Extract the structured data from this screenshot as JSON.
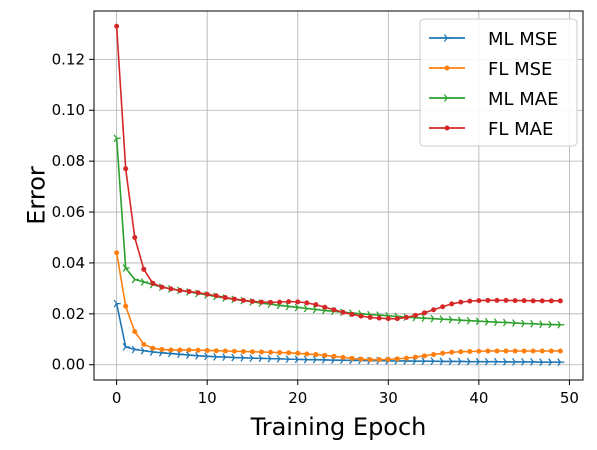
{
  "chart_data": {
    "type": "line",
    "xlabel": "Training Epoch",
    "ylabel": "Error",
    "xlim": [
      -2.5,
      51.5
    ],
    "ylim": [
      -0.006,
      0.139
    ],
    "xticks": [
      0,
      10,
      20,
      30,
      40,
      50
    ],
    "yticks": [
      0.0,
      0.02,
      0.04,
      0.06,
      0.08,
      0.1,
      0.12
    ],
    "xtick_labels": [
      "0",
      "10",
      "20",
      "30",
      "40",
      "50"
    ],
    "ytick_labels": [
      "0.00",
      "0.02",
      "0.04",
      "0.06",
      "0.08",
      "0.10",
      "0.12"
    ],
    "grid": true,
    "legend_position": "top-right",
    "x": [
      0,
      1,
      2,
      3,
      4,
      5,
      6,
      7,
      8,
      9,
      10,
      11,
      12,
      13,
      14,
      15,
      16,
      17,
      18,
      19,
      20,
      21,
      22,
      23,
      24,
      25,
      26,
      27,
      28,
      29,
      30,
      31,
      32,
      33,
      34,
      35,
      36,
      37,
      38,
      39,
      40,
      41,
      42,
      43,
      44,
      45,
      46,
      47,
      48,
      49
    ],
    "series": [
      {
        "name": "ML MSE",
        "color": "#1f77b4",
        "marker": "tri_right",
        "values": [
          0.024,
          0.007,
          0.006,
          0.0055,
          0.005,
          0.0047,
          0.0044,
          0.0041,
          0.0038,
          0.0035,
          0.0033,
          0.0031,
          0.003,
          0.0028,
          0.0027,
          0.0026,
          0.0025,
          0.0024,
          0.0023,
          0.0022,
          0.0021,
          0.002,
          0.002,
          0.0019,
          0.0018,
          0.0018,
          0.0017,
          0.0017,
          0.0016,
          0.0016,
          0.0015,
          0.0015,
          0.0015,
          0.0014,
          0.0014,
          0.0014,
          0.0013,
          0.0013,
          0.0013,
          0.0012,
          0.0012,
          0.0012,
          0.0012,
          0.0011,
          0.0011,
          0.0011,
          0.0011,
          0.001,
          0.001,
          0.001
        ]
      },
      {
        "name": "FL MSE",
        "color": "#ff7f0e",
        "marker": "dot",
        "values": [
          0.044,
          0.023,
          0.013,
          0.008,
          0.0065,
          0.006,
          0.0058,
          0.0058,
          0.0058,
          0.0057,
          0.0056,
          0.0055,
          0.0054,
          0.0053,
          0.0052,
          0.0051,
          0.005,
          0.0049,
          0.0048,
          0.0047,
          0.0045,
          0.0042,
          0.004,
          0.0037,
          0.0033,
          0.0029,
          0.0025,
          0.0022,
          0.002,
          0.002,
          0.0021,
          0.0023,
          0.0026,
          0.003,
          0.0035,
          0.004,
          0.0045,
          0.0049,
          0.0051,
          0.0052,
          0.0053,
          0.0054,
          0.0054,
          0.0054,
          0.0054,
          0.0054,
          0.0054,
          0.0054,
          0.0054,
          0.0054
        ]
      },
      {
        "name": "ML MAE",
        "color": "#2ca02c",
        "marker": "tri_right",
        "values": [
          0.089,
          0.038,
          0.0335,
          0.0325,
          0.0315,
          0.0305,
          0.0298,
          0.0292,
          0.0286,
          0.028,
          0.0274,
          0.0268,
          0.0262,
          0.0257,
          0.0252,
          0.0247,
          0.0242,
          0.0238,
          0.0233,
          0.0229,
          0.0225,
          0.0221,
          0.0217,
          0.0213,
          0.021,
          0.0206,
          0.0203,
          0.02,
          0.0197,
          0.0195,
          0.0192,
          0.019,
          0.0187,
          0.0185,
          0.0183,
          0.0181,
          0.0179,
          0.0177,
          0.0175,
          0.0173,
          0.0171,
          0.0169,
          0.0167,
          0.0166,
          0.0164,
          0.0162,
          0.0161,
          0.0159,
          0.0158,
          0.0157
        ]
      },
      {
        "name": "FL MAE",
        "color": "#d62728",
        "marker": "dot",
        "values": [
          0.133,
          0.077,
          0.05,
          0.0375,
          0.032,
          0.0305,
          0.0298,
          0.0292,
          0.0288,
          0.0283,
          0.0277,
          0.0271,
          0.0264,
          0.0258,
          0.0253,
          0.0249,
          0.0246,
          0.0245,
          0.0246,
          0.0248,
          0.0247,
          0.0243,
          0.0236,
          0.0226,
          0.0216,
          0.0206,
          0.0198,
          0.0191,
          0.0186,
          0.0183,
          0.0181,
          0.0181,
          0.0186,
          0.0194,
          0.0204,
          0.0216,
          0.0228,
          0.0239,
          0.0246,
          0.025,
          0.0252,
          0.0253,
          0.0253,
          0.0253,
          0.0252,
          0.0252,
          0.0251,
          0.0251,
          0.0251,
          0.0251
        ]
      }
    ]
  }
}
